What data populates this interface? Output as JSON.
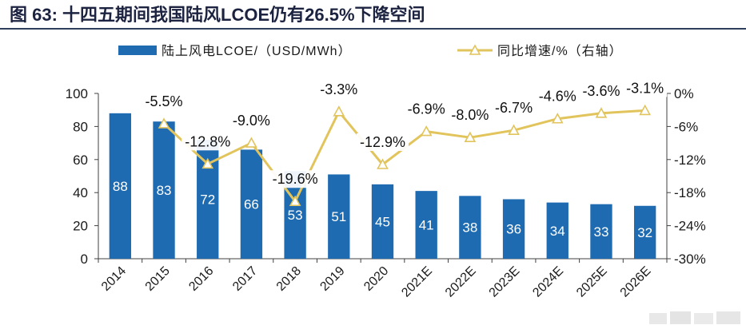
{
  "chart_data": {
    "type": "bar",
    "title": "图 63: 十四五期间我国陆风LCOE仍有26.5%下降空间",
    "categories": [
      "2014",
      "2015",
      "2016",
      "2017",
      "2018",
      "2019",
      "2020",
      "2021E",
      "2022E",
      "2023E",
      "2024E",
      "2025E",
      "2026E"
    ],
    "series": [
      {
        "name": "陆上风电LCOE/（USD/MWh）",
        "type": "bar",
        "color": "#1F6BB1",
        "values": [
          88,
          83,
          72,
          66,
          53,
          51,
          45,
          41,
          38,
          36,
          34,
          33,
          32
        ]
      },
      {
        "name": "同比增速/%（右轴）",
        "type": "line",
        "color": "#E2C45C",
        "values": [
          null,
          -5.5,
          -12.8,
          -9.0,
          -19.6,
          -3.3,
          -12.9,
          -6.9,
          -8.0,
          -6.7,
          -4.6,
          -3.6,
          -3.1
        ],
        "labels": [
          null,
          "-5.5%",
          "-12.8%",
          "-9.0%",
          "-19.6%",
          "-3.3%",
          "-12.9%",
          "-6.9%",
          "-8.0%",
          "-6.7%",
          "-4.6%",
          "-3.6%",
          "-3.1%"
        ]
      }
    ],
    "y_left": {
      "min": 0,
      "max": 100,
      "ticks": [
        0,
        20,
        40,
        60,
        80,
        100
      ]
    },
    "y_right": {
      "min": -30,
      "max": 0,
      "ticks": [
        0,
        -6,
        -12,
        -18,
        -24,
        -30
      ],
      "tick_labels": [
        "0%",
        "-6%",
        "-12%",
        "-18%",
        "-24%",
        "-30%"
      ]
    },
    "legend": "top",
    "grid": false
  }
}
